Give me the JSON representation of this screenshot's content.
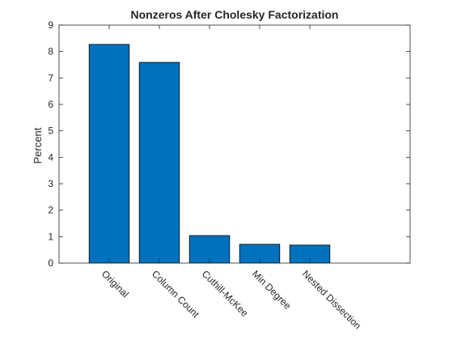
{
  "chart_data": {
    "type": "bar",
    "title": "Nonzeros After Cholesky Factorization",
    "xlabel": "",
    "ylabel": "Percent",
    "categories": [
      "Original",
      "Column Count",
      "Cuthill-McKee",
      "Min Degree",
      "Nested Dissection"
    ],
    "values": [
      8.27,
      7.59,
      1.04,
      0.71,
      0.68
    ],
    "ylim": [
      0,
      9
    ],
    "yticks": [
      0,
      1,
      2,
      3,
      4,
      5,
      6,
      7,
      8,
      9
    ],
    "grid": false,
    "bar_color": "#0072BD",
    "bar_edge_color": "#000000"
  }
}
